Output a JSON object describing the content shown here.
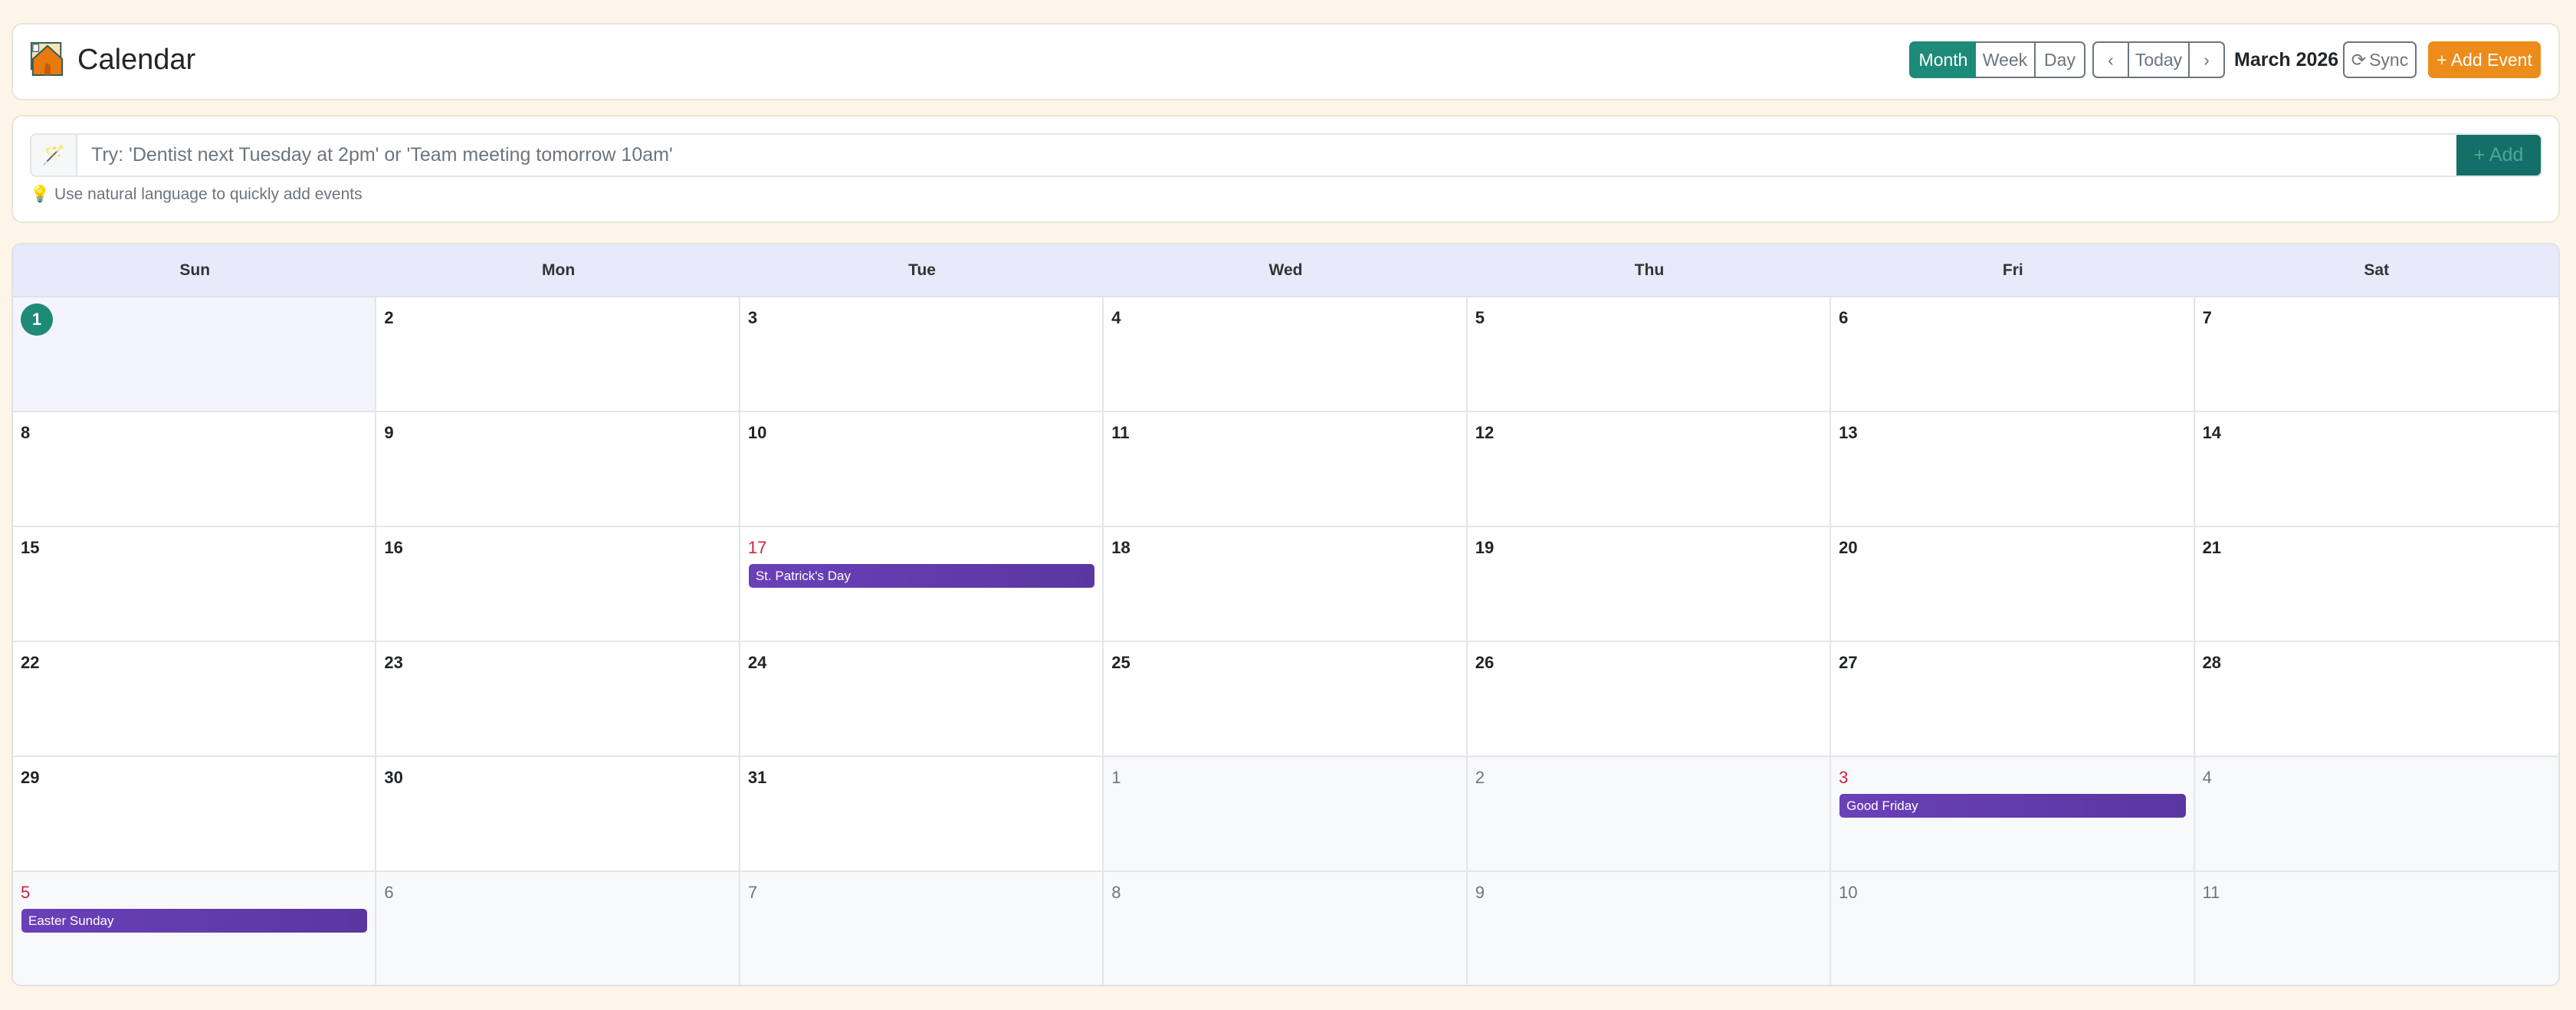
{
  "header": {
    "title": "Calendar",
    "logo_icon": "calendar-house-icon",
    "views": [
      "Month",
      "Week",
      "Day"
    ],
    "active_view": "Month",
    "nav": {
      "prev": "‹",
      "today": "Today",
      "next": "›"
    },
    "month_label": "March 2026",
    "sync_label": "Sync",
    "add_event_label": "+ Add Event"
  },
  "quick_add": {
    "placeholder": "Try: 'Dentist next Tuesday at 2pm' or 'Team meeting tomorrow 10am'",
    "value": "",
    "button_label": "+ Add",
    "hint": "Use natural language to quickly add events"
  },
  "colors": {
    "accent": "#1e8a78",
    "add_event": "#ec8c1b",
    "event": "#6a40b9",
    "holiday_date": "#d0213a",
    "background": "#fdf6e8"
  },
  "calendar": {
    "weekdays": [
      "Sun",
      "Mon",
      "Tue",
      "Wed",
      "Thu",
      "Fri",
      "Sat"
    ],
    "days": [
      {
        "n": "1",
        "today": true
      },
      {
        "n": "2"
      },
      {
        "n": "3"
      },
      {
        "n": "4"
      },
      {
        "n": "5"
      },
      {
        "n": "6"
      },
      {
        "n": "7"
      },
      {
        "n": "8"
      },
      {
        "n": "9"
      },
      {
        "n": "10"
      },
      {
        "n": "11"
      },
      {
        "n": "12"
      },
      {
        "n": "13"
      },
      {
        "n": "14"
      },
      {
        "n": "15"
      },
      {
        "n": "16"
      },
      {
        "n": "17",
        "holiday": true,
        "event": "St. Patrick's Day"
      },
      {
        "n": "18"
      },
      {
        "n": "19"
      },
      {
        "n": "20"
      },
      {
        "n": "21"
      },
      {
        "n": "22"
      },
      {
        "n": "23"
      },
      {
        "n": "24"
      },
      {
        "n": "25"
      },
      {
        "n": "26"
      },
      {
        "n": "27"
      },
      {
        "n": "28"
      },
      {
        "n": "29"
      },
      {
        "n": "30"
      },
      {
        "n": "31"
      },
      {
        "n": "1",
        "other": true
      },
      {
        "n": "2",
        "other": true
      },
      {
        "n": "3",
        "other": true,
        "holiday": true,
        "event": "Good Friday"
      },
      {
        "n": "4",
        "other": true
      },
      {
        "n": "5",
        "other": true,
        "holiday": true,
        "event": "Easter Sunday"
      },
      {
        "n": "6",
        "other": true
      },
      {
        "n": "7",
        "other": true
      },
      {
        "n": "8",
        "other": true
      },
      {
        "n": "9",
        "other": true
      },
      {
        "n": "10",
        "other": true
      },
      {
        "n": "11",
        "other": true
      }
    ]
  }
}
